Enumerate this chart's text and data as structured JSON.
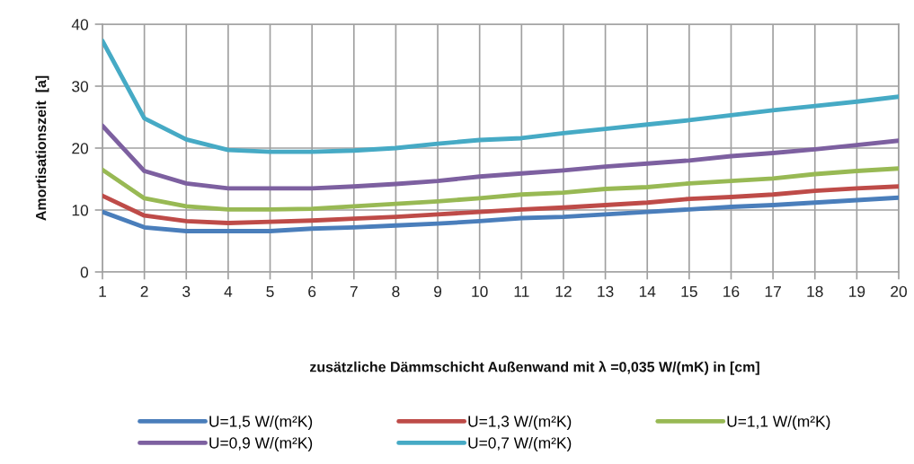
{
  "chart_data": {
    "type": "line",
    "xlabel": "zusätzliche Dämmschicht Außenwand mit λ =0,035 W/(mK) in [cm]",
    "ylabel": "Amortisationszeit  [a]",
    "x": [
      1,
      2,
      3,
      4,
      5,
      6,
      7,
      8,
      9,
      10,
      11,
      12,
      13,
      14,
      15,
      16,
      17,
      18,
      19,
      20
    ],
    "series": [
      {
        "name": "U=1,5 W/(m²K)",
        "color": "#4a7ebb",
        "values": [
          9.7,
          7.2,
          6.6,
          6.6,
          6.6,
          7.0,
          7.2,
          7.5,
          7.8,
          8.2,
          8.7,
          8.9,
          9.3,
          9.7,
          10.1,
          10.5,
          10.8,
          11.2,
          11.6,
          12.0
        ]
      },
      {
        "name": "U=1,3 W/(m²K)",
        "color": "#be4b48",
        "values": [
          12.3,
          9.1,
          8.2,
          7.9,
          8.1,
          8.3,
          8.6,
          8.9,
          9.3,
          9.7,
          10.1,
          10.4,
          10.8,
          11.2,
          11.8,
          12.1,
          12.5,
          13.1,
          13.5,
          13.8
        ]
      },
      {
        "name": "U=1,1 W/(m²K)",
        "color": "#98b954",
        "values": [
          16.5,
          11.9,
          10.6,
          10.1,
          10.1,
          10.2,
          10.6,
          11.0,
          11.4,
          11.9,
          12.5,
          12.8,
          13.4,
          13.7,
          14.3,
          14.7,
          15.1,
          15.8,
          16.3,
          16.7
        ]
      },
      {
        "name": "U=0,9 W/(m²K)",
        "color": "#7d60a0",
        "values": [
          23.6,
          16.3,
          14.3,
          13.5,
          13.5,
          13.5,
          13.8,
          14.2,
          14.7,
          15.4,
          15.9,
          16.4,
          17.0,
          17.5,
          18.0,
          18.7,
          19.2,
          19.8,
          20.5,
          21.2
        ]
      },
      {
        "name": "U=0,7 W/(m²K)",
        "color": "#46aac5",
        "values": [
          37.3,
          24.8,
          21.4,
          19.7,
          19.4,
          19.4,
          19.6,
          20.0,
          20.7,
          21.3,
          21.6,
          22.4,
          23.1,
          23.8,
          24.5,
          25.3,
          26.1,
          26.8,
          27.5,
          28.3
        ]
      }
    ],
    "xlim": [
      1,
      20
    ],
    "xticks": [
      1,
      2,
      3,
      4,
      5,
      6,
      7,
      8,
      9,
      10,
      11,
      12,
      13,
      14,
      15,
      16,
      17,
      18,
      19,
      20
    ],
    "ylim": [
      0,
      40
    ],
    "yticks": [
      0,
      10,
      20,
      30,
      40
    ],
    "grid": true,
    "legend": "bottom",
    "marker": "none",
    "line_style": "solid"
  }
}
